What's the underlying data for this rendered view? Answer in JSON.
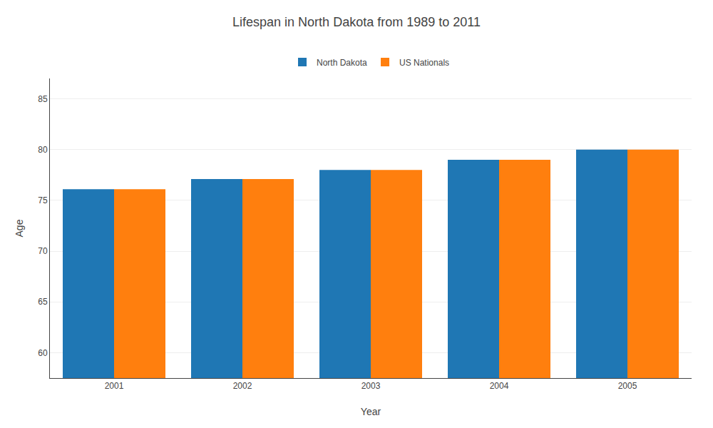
{
  "chart_data": {
    "type": "bar",
    "title": "Lifespan in North Dakota from 1989 to 2011",
    "x_label": "Year",
    "y_label": "Age",
    "categories": [
      "2001",
      "2002",
      "2003",
      "2004",
      "2005"
    ],
    "series": [
      {
        "name": "North Dakota",
        "values": [
          76.1,
          77.1,
          78.0,
          79.0,
          80.0
        ]
      },
      {
        "name": "US Nationals",
        "values": [
          76.1,
          77.1,
          78.0,
          79.0,
          80.0
        ]
      }
    ],
    "ylim": [
      57.5,
      87
    ],
    "yticks": [
      60,
      65,
      70,
      75,
      80,
      85
    ],
    "grid": true,
    "legend": "upper center"
  }
}
